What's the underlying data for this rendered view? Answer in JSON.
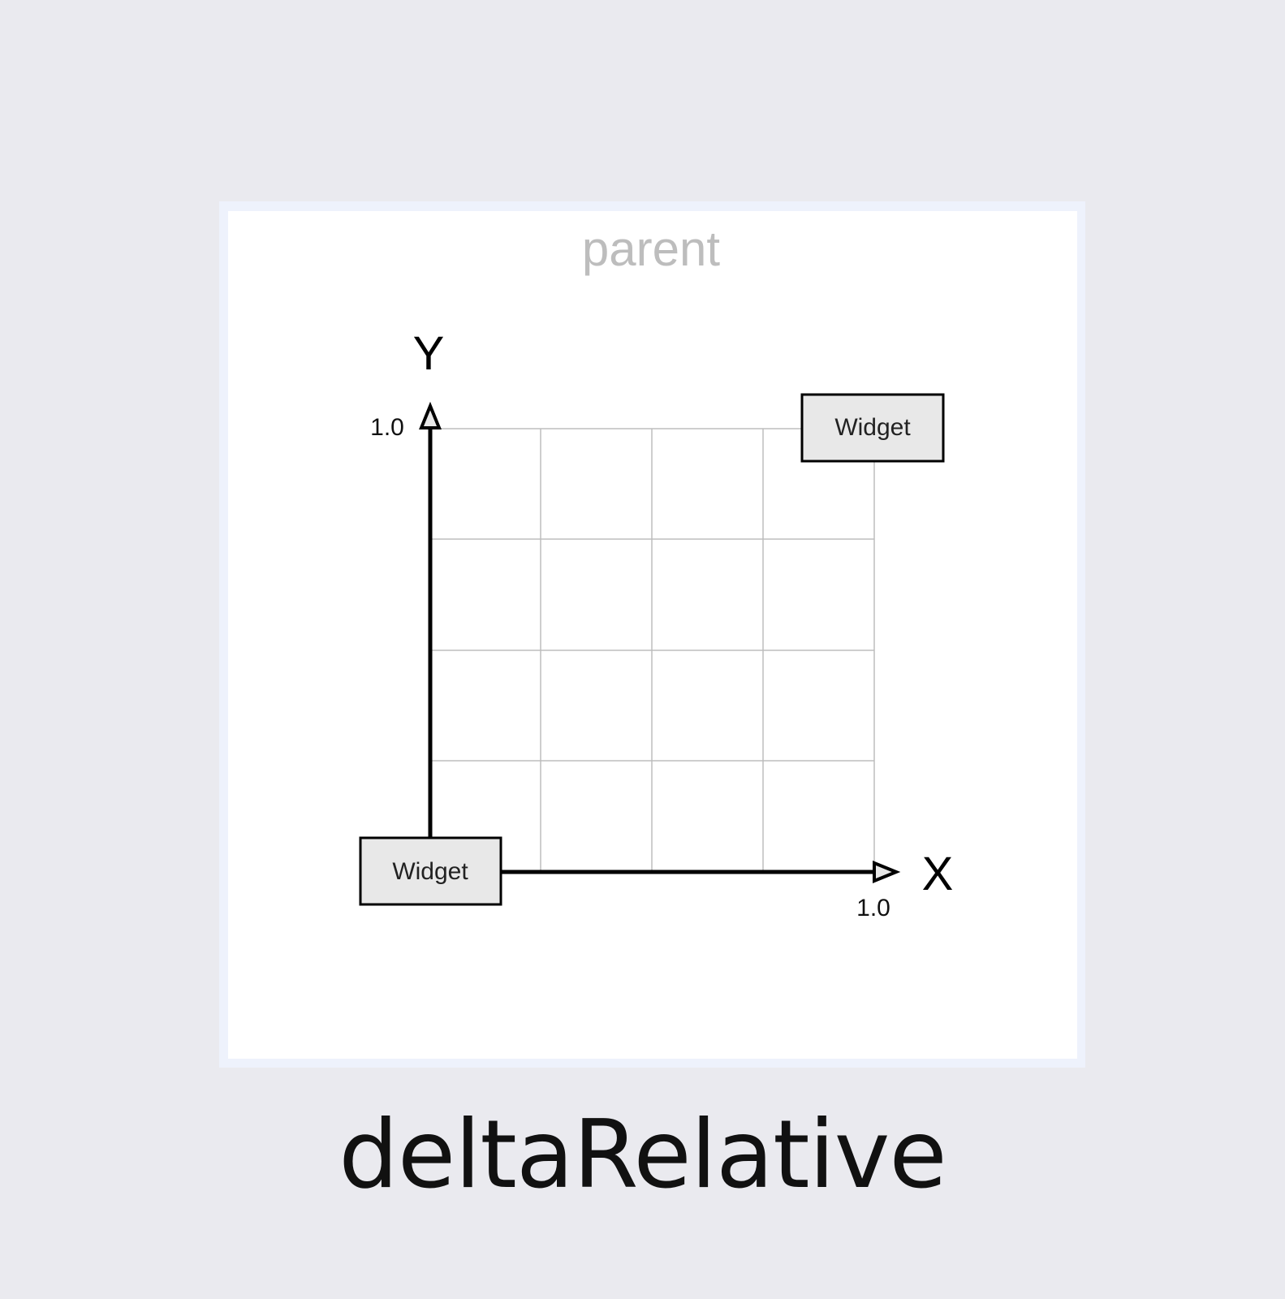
{
  "parent_label": "parent",
  "axes": {
    "x_label": "X",
    "y_label": "Y",
    "x_max_label": "1.0",
    "y_max_label": "1.0"
  },
  "widgets": [
    {
      "label": "Widget",
      "position": "origin (0,0)"
    },
    {
      "label": "Widget",
      "position": "(1.0,1.0)"
    }
  ],
  "caption": "deltaRelative",
  "colors": {
    "background": "#eaeaef",
    "panel_border": "#eef2fc",
    "widget_fill": "#e8e8e8",
    "grid": "#bdbdbd",
    "parent_text": "#bdbdbd"
  }
}
